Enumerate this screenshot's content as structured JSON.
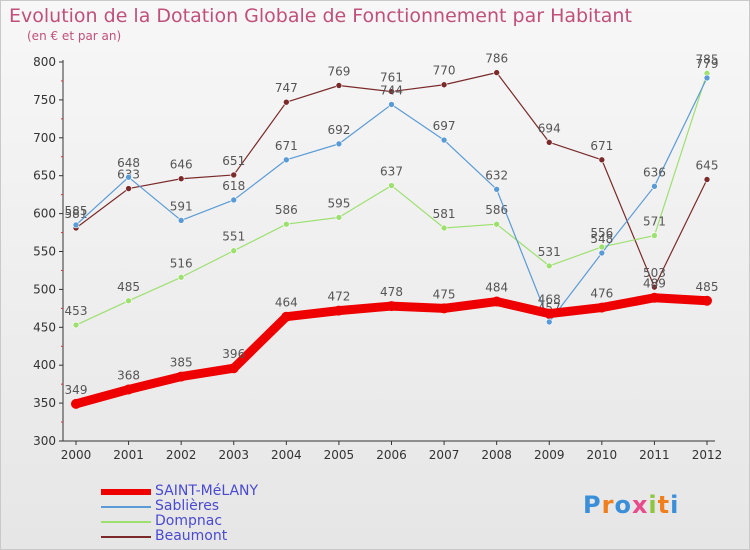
{
  "header": {
    "title": "Evolution de la Dotation Globale de Fonctionnement par Habitant",
    "subtitle": "(en € et par an)"
  },
  "logo": {
    "text": "Proxiti"
  },
  "chart_data": {
    "type": "line",
    "title": "Evolution de la Dotation Globale de Fonctionnement par Habitant",
    "subtitle": "(en € et par an)",
    "xlabel": "",
    "ylabel": "",
    "categories": [
      "2000",
      "2001",
      "2002",
      "2003",
      "2004",
      "2005",
      "2006",
      "2007",
      "2008",
      "2009",
      "2010",
      "2011",
      "2012"
    ],
    "ylim": [
      300,
      800
    ],
    "yticks": [
      300,
      350,
      400,
      450,
      500,
      550,
      600,
      650,
      700,
      750,
      800
    ],
    "grid": false,
    "legend": "bottom-left",
    "series": [
      {
        "name": "SAINT-MéLANY",
        "color": "#ee0000",
        "values": [
          349,
          368,
          385,
          396,
          464,
          472,
          478,
          475,
          484,
          468,
          476,
          489,
          485
        ]
      },
      {
        "name": "Sablières",
        "color": "#5b9bd5",
        "values": [
          585,
          648,
          591,
          618,
          671,
          692,
          744,
          697,
          632,
          457,
          548,
          636,
          779
        ]
      },
      {
        "name": "Dompnac",
        "color": "#9de070",
        "values": [
          453,
          485,
          516,
          551,
          586,
          595,
          637,
          581,
          586,
          531,
          556,
          571,
          785
        ]
      },
      {
        "name": "Beaumont",
        "color": "#7a2a2a",
        "values": [
          581,
          633,
          646,
          651,
          747,
          769,
          761,
          770,
          786,
          694,
          671,
          503,
          645
        ]
      }
    ]
  }
}
